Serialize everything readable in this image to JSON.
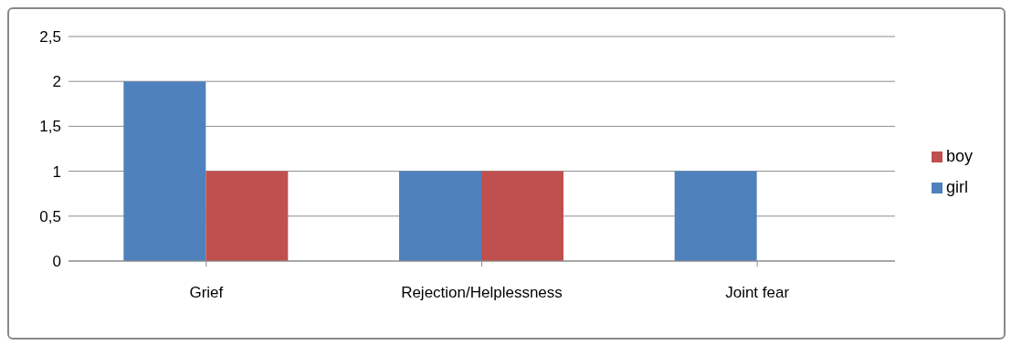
{
  "chart_data": {
    "type": "bar",
    "categories": [
      "Grief",
      "Rejection/Helplessness",
      "Joint fear"
    ],
    "series": [
      {
        "name": "girl",
        "color": "#4f81bd",
        "values": [
          2,
          1,
          1
        ]
      },
      {
        "name": "boy",
        "color": "#c0504d",
        "values": [
          1,
          1,
          0
        ]
      }
    ],
    "ylim": [
      0,
      2.5
    ],
    "yticks": [
      {
        "value": 0,
        "label": "0"
      },
      {
        "value": 0.5,
        "label": "0,5"
      },
      {
        "value": 1,
        "label": "1"
      },
      {
        "value": 1.5,
        "label": "1,5"
      },
      {
        "value": 2,
        "label": "2"
      },
      {
        "value": 2.5,
        "label": "2,5"
      }
    ],
    "grid": "y",
    "legend": "right"
  }
}
